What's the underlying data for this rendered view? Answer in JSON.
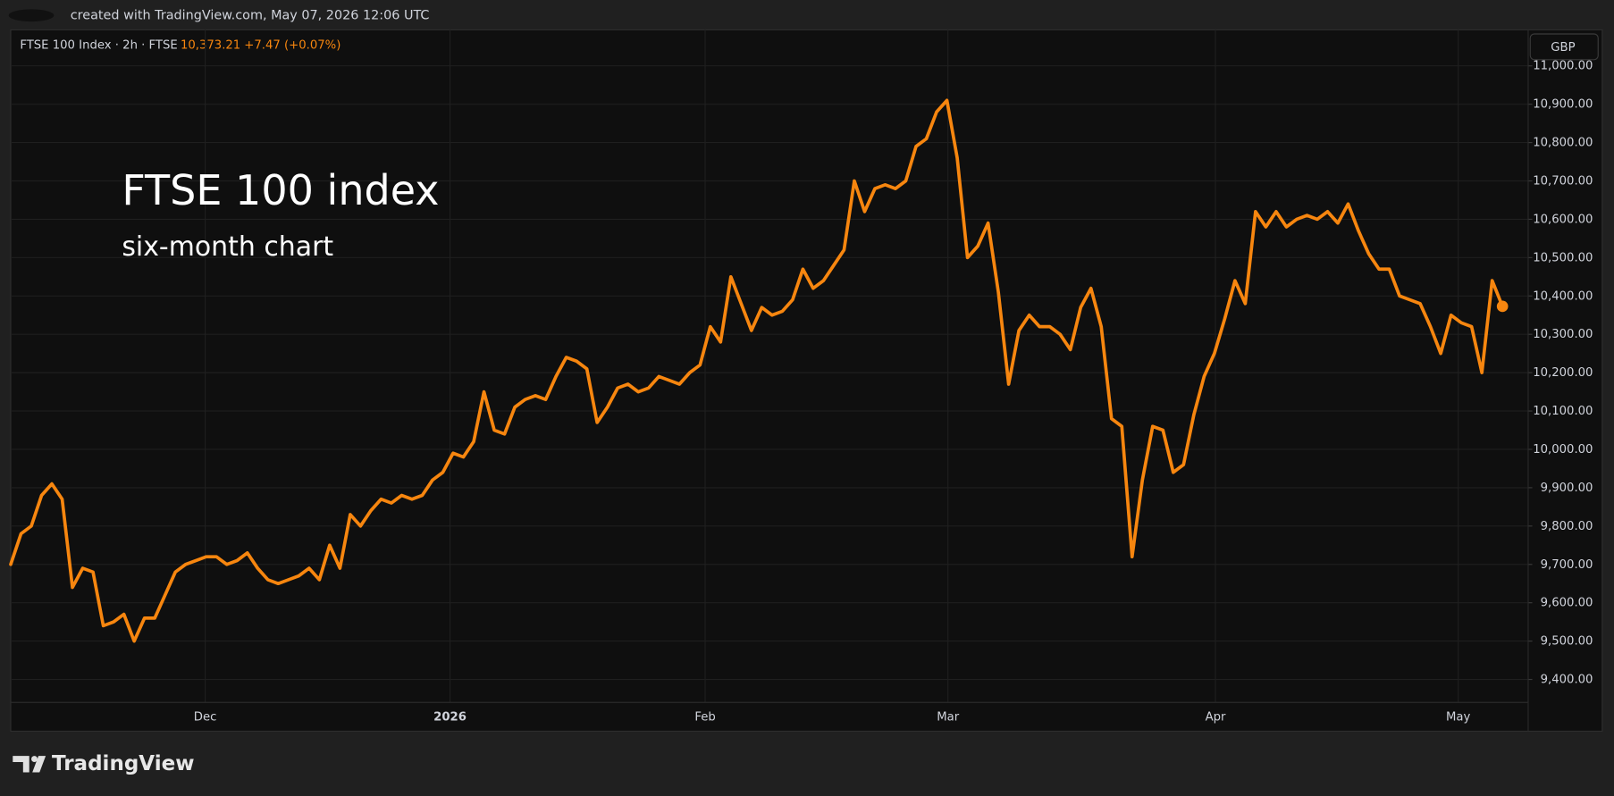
{
  "chart_data": {
    "type": "line",
    "created_note": "created with TradingView.com, May 07, 2026 12:06 UTC",
    "symbol": "FTSE 100 Index · 2h · FTSE",
    "last_price": "10,373.21",
    "change": "+7.47 (+0.07%)",
    "currency": "GBP",
    "title": "FTSE 100 index",
    "subtitle": "six-month chart",
    "brand": "TradingView",
    "xlim": [
      0,
      147.5
    ],
    "xticks": [
      {
        "value": 18.9,
        "label": "Dec"
      },
      {
        "value": 42.7,
        "label": "2026"
      },
      {
        "value": 67.5,
        "label": "Feb"
      },
      {
        "value": 91.1,
        "label": "Mar"
      },
      {
        "value": 117.1,
        "label": "Apr"
      },
      {
        "value": 140.7,
        "label": "May"
      }
    ],
    "ylim": [
      9265,
      11094
    ],
    "yticks": [
      {
        "value": 9400,
        "label": "9,400.00"
      },
      {
        "value": 9500,
        "label": "9,500.00"
      },
      {
        "value": 9600,
        "label": "9,600.00"
      },
      {
        "value": 9700,
        "label": "9,700.00"
      },
      {
        "value": 9800,
        "label": "9,800.00"
      },
      {
        "value": 9900,
        "label": "9,900.00"
      },
      {
        "value": 10000,
        "label": "10,000.00"
      },
      {
        "value": 10100,
        "label": "10,100.00"
      },
      {
        "value": 10200,
        "label": "10,200.00"
      },
      {
        "value": 10300,
        "label": "10,300.00"
      },
      {
        "value": 10400,
        "label": "10,400.00"
      },
      {
        "value": 10500,
        "label": "10,500.00"
      },
      {
        "value": 10600,
        "label": "10,600.00"
      },
      {
        "value": 10700,
        "label": "10,700.00"
      },
      {
        "value": 10800,
        "label": "10,800.00"
      },
      {
        "value": 10900,
        "label": "10,900.00"
      },
      {
        "value": 11000,
        "label": "11,000.00"
      }
    ],
    "grid": true,
    "series": [
      {
        "color": "#f7860f",
        "x": [
          0,
          1,
          2,
          3,
          4,
          5,
          6,
          7,
          8,
          9,
          10,
          11,
          12,
          13,
          14,
          15,
          16,
          17,
          18,
          19,
          20,
          21,
          22,
          23,
          24,
          25,
          26,
          27,
          28,
          29,
          30,
          31,
          32,
          33,
          34,
          35,
          36,
          37,
          38,
          39,
          40,
          41,
          42,
          43,
          44,
          45,
          46,
          47,
          48,
          49,
          50,
          51,
          52,
          53,
          54,
          55,
          56,
          57,
          58,
          59,
          60,
          61,
          62,
          63,
          64,
          65,
          66,
          67,
          68,
          69,
          70,
          71,
          72,
          73,
          74,
          75,
          76,
          77,
          78,
          79,
          80,
          81,
          82,
          83,
          84,
          85,
          86,
          87,
          88,
          89,
          90,
          91,
          92,
          93,
          94,
          95,
          96,
          97,
          98,
          99,
          100,
          101,
          102,
          103,
          104,
          105,
          106,
          107,
          108,
          109,
          110,
          111,
          112,
          113,
          114,
          115,
          116,
          117,
          118,
          119,
          120,
          121,
          122,
          123,
          124,
          125,
          126,
          127,
          128,
          129,
          130,
          131,
          132,
          133,
          134,
          135,
          136,
          137,
          138,
          139,
          140,
          141,
          142,
          143,
          144,
          145
        ],
        "values": [
          9700,
          9780,
          9800,
          9880,
          9910,
          9870,
          9640,
          9690,
          9680,
          9540,
          9550,
          9570,
          9500,
          9560,
          9560,
          9620,
          9680,
          9700,
          9710,
          9720,
          9720,
          9700,
          9710,
          9730,
          9690,
          9660,
          9650,
          9660,
          9670,
          9690,
          9660,
          9750,
          9690,
          9830,
          9800,
          9840,
          9870,
          9860,
          9880,
          9870,
          9880,
          9920,
          9940,
          9990,
          9980,
          10020,
          10150,
          10050,
          10040,
          10110,
          10130,
          10140,
          10130,
          10190,
          10240,
          10230,
          10210,
          10070,
          10110,
          10160,
          10170,
          10150,
          10160,
          10190,
          10180,
          10170,
          10200,
          10220,
          10320,
          10280,
          10450,
          10380,
          10310,
          10370,
          10350,
          10360,
          10390,
          10470,
          10420,
          10440,
          10480,
          10520,
          10700,
          10620,
          10680,
          10690,
          10680,
          10700,
          10790,
          10810,
          10880,
          10910,
          10760,
          10500,
          10530,
          10590,
          10410,
          10170,
          10310,
          10350,
          10320,
          10320,
          10300,
          10260,
          10370,
          10420,
          10320,
          10080,
          10060,
          9720,
          9920,
          10060,
          10050,
          9940,
          9960,
          10090,
          10190,
          10250,
          10340,
          10440,
          10380,
          10620,
          10580,
          10620,
          10580,
          10600,
          10610,
          10600,
          10620,
          10590,
          10640,
          10570,
          10510,
          10470,
          10470,
          10400,
          10390,
          10380,
          10320,
          10250,
          10350,
          10330,
          10320,
          10200,
          10440,
          10373
        ]
      }
    ]
  }
}
